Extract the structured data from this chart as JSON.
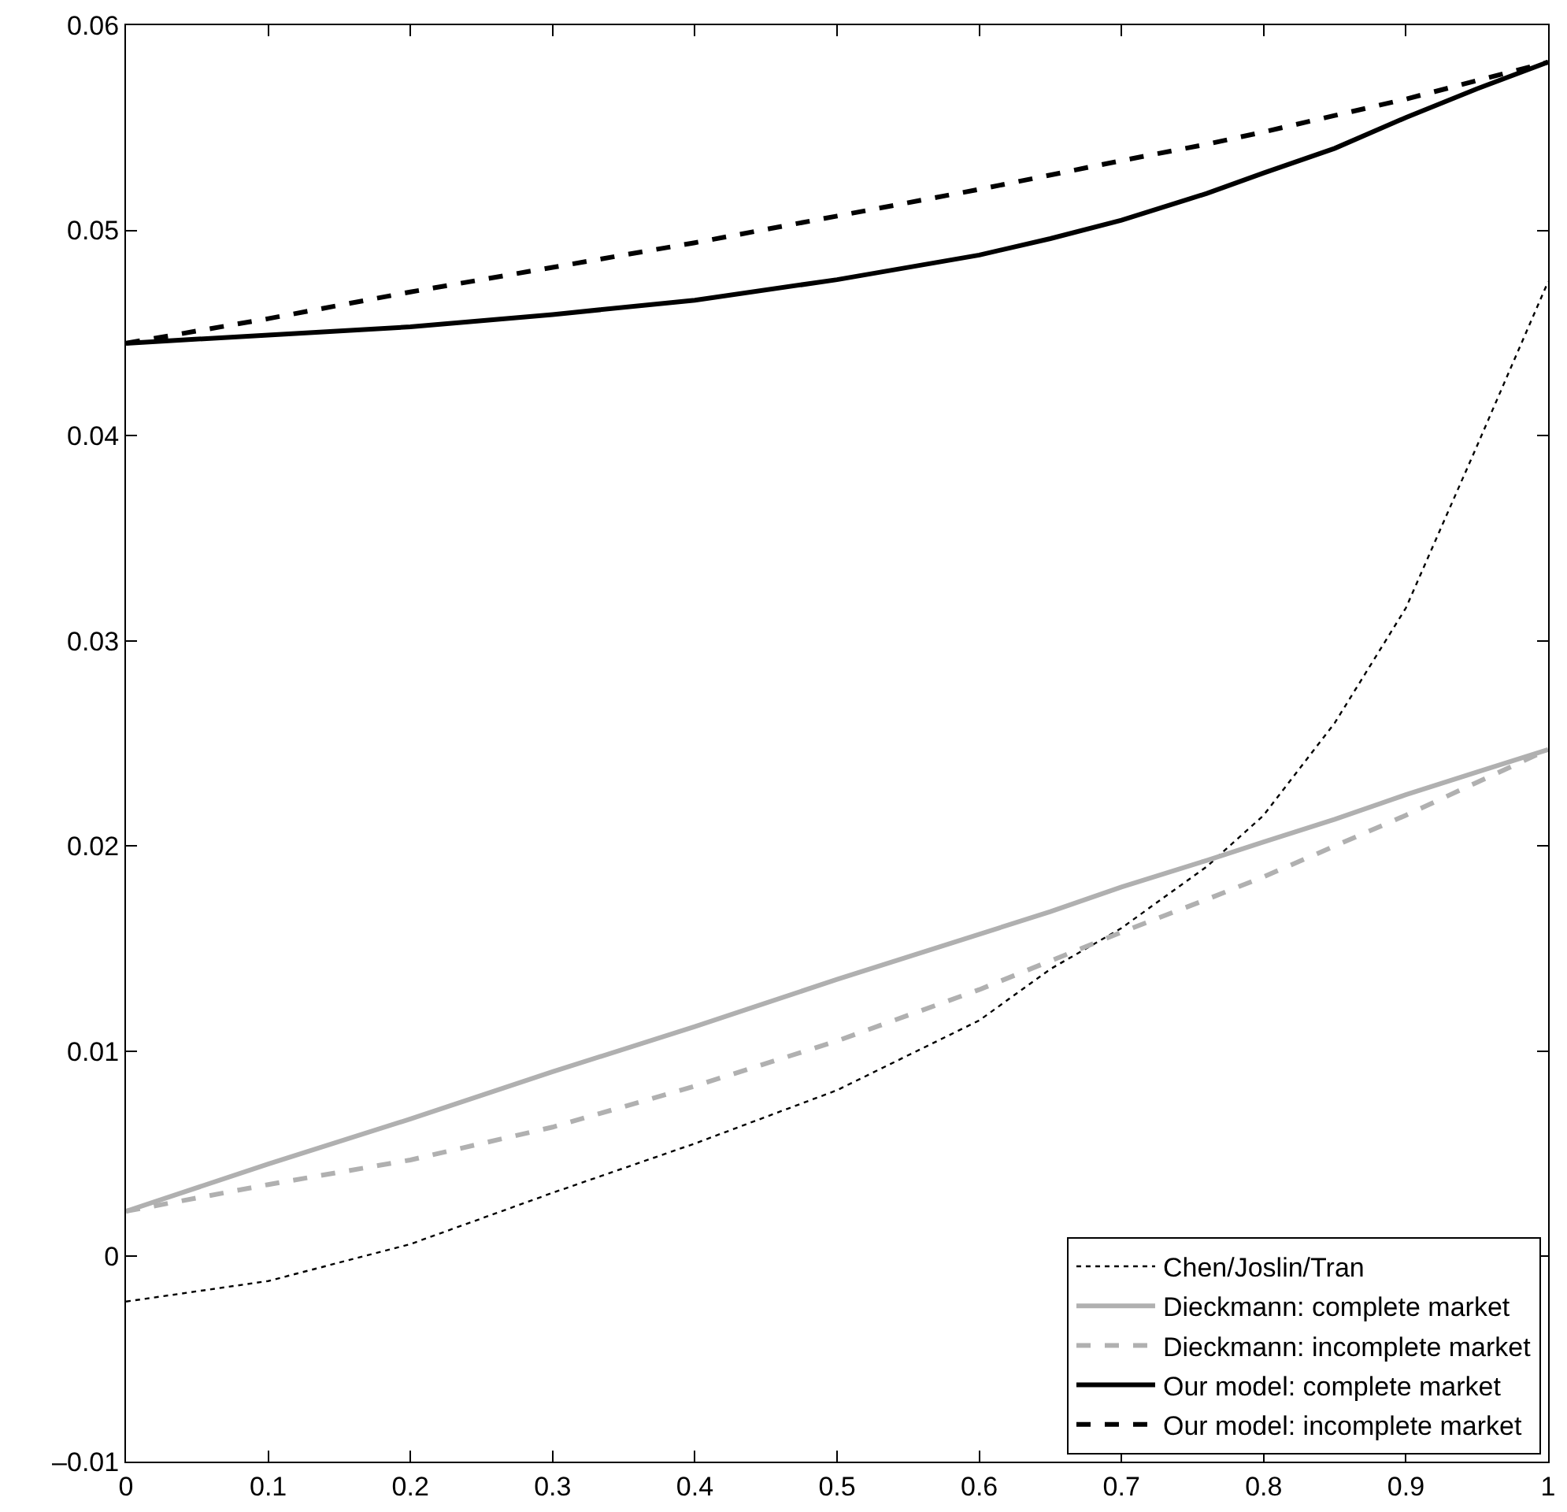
{
  "chart_data": {
    "type": "line",
    "x": [
      0,
      0.1,
      0.2,
      0.3,
      0.4,
      0.5,
      0.6,
      0.65,
      0.7,
      0.76,
      0.8,
      0.85,
      0.9,
      0.95,
      1
    ],
    "series": [
      {
        "name": "Chen/Joslin/Tran",
        "color": "#000000",
        "line_style": "dotted",
        "values": [
          -0.0022,
          -0.0012,
          0.0006,
          0.0031,
          0.0055,
          0.0081,
          0.0115,
          0.014,
          0.016,
          0.019,
          0.0215,
          0.026,
          0.0316,
          0.0395,
          0.0475
        ]
      },
      {
        "name": "Dieckmann: complete market",
        "color": "#b0b0b0",
        "line_style": "solid",
        "values": [
          0.0022,
          0.0045,
          0.0067,
          0.009,
          0.0112,
          0.0135,
          0.0157,
          0.0168,
          0.018,
          0.0193,
          0.0202,
          0.0213,
          0.0225,
          0.0236,
          0.0247
        ]
      },
      {
        "name": "Dieckmann: incomplete market",
        "color": "#b0b0b0",
        "line_style": "dashed",
        "values": [
          0.0022,
          0.0035,
          0.0047,
          0.0063,
          0.0083,
          0.0105,
          0.013,
          0.0144,
          0.0158,
          0.0174,
          0.0185,
          0.02,
          0.0215,
          0.0231,
          0.0247
        ]
      },
      {
        "name": "Our model: complete market",
        "color": "#000000",
        "line_style": "solid",
        "values": [
          0.0445,
          0.0449,
          0.0453,
          0.0459,
          0.0466,
          0.0476,
          0.0488,
          0.0496,
          0.0505,
          0.0518,
          0.0528,
          0.054,
          0.0555,
          0.0569,
          0.0582
        ]
      },
      {
        "name": "Our model: incomplete market",
        "color": "#000000",
        "line_style": "dashed",
        "values": [
          0.0445,
          0.0457,
          0.047,
          0.0482,
          0.0494,
          0.0507,
          0.052,
          0.0527,
          0.0534,
          0.0542,
          0.0548,
          0.0556,
          0.0564,
          0.0573,
          0.0582
        ]
      }
    ],
    "xlim": [
      0,
      1
    ],
    "xticks": [
      0,
      0.1,
      0.2,
      0.3,
      0.4,
      0.5,
      0.6,
      0.7,
      0.8,
      0.9,
      1
    ],
    "ylim": [
      -0.01,
      0.06
    ],
    "yticks": [
      {
        "value": -0.01,
        "label": "–0.01"
      },
      0,
      0.01,
      0.02,
      0.03,
      0.04,
      0.05,
      0.06
    ],
    "grid": false,
    "legend": "bottom right",
    "marker": "none"
  }
}
